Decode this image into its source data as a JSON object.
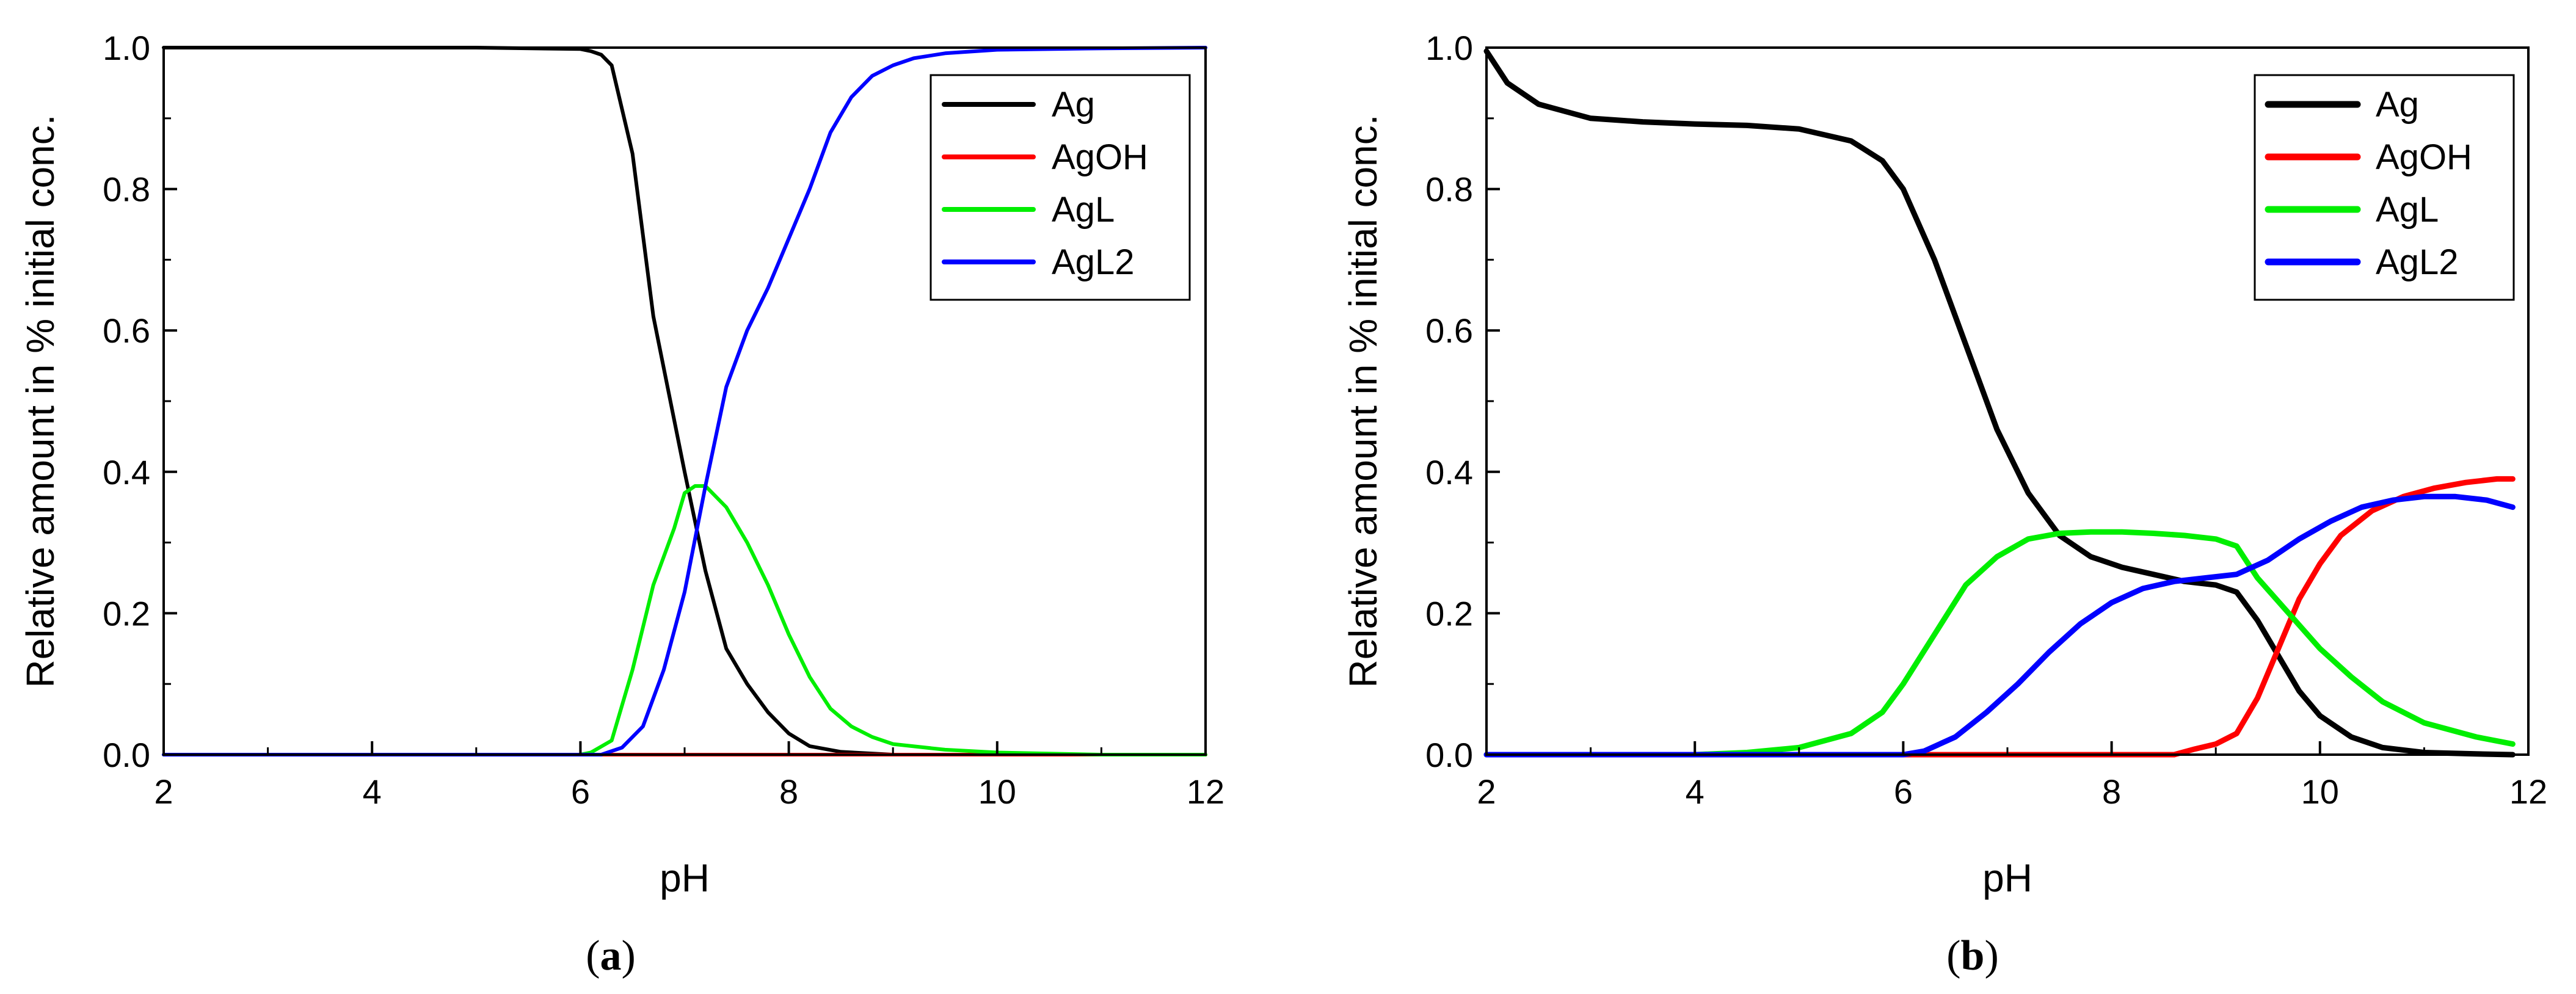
{
  "figure": {
    "panels": [
      "a",
      "b"
    ]
  },
  "chart_data": [
    {
      "type": "line",
      "panel_label": "a",
      "xlabel": "pH",
      "ylabel": "Relative amount in % initial conc.",
      "xlim": [
        2,
        12
      ],
      "ylim": [
        0,
        1.0
      ],
      "xticks": [
        2,
        4,
        6,
        8,
        10,
        12
      ],
      "xtick_labels": [
        "2",
        "4",
        "6",
        "8",
        "10",
        "12"
      ],
      "yticks": [
        0,
        0.2,
        0.4,
        0.6,
        0.8,
        1.0
      ],
      "ytick_labels": [
        "0.0",
        "0.2",
        "0.4",
        "0.6",
        "0.8",
        "1.0"
      ],
      "grid": false,
      "legend_position": "top-right",
      "series": [
        {
          "name": "Ag",
          "color": "#000000",
          "x": [
            2,
            4,
            5,
            6,
            6.1,
            6.2,
            6.3,
            6.5,
            6.7,
            7.0,
            7.2,
            7.4,
            7.6,
            7.8,
            8.0,
            8.2,
            8.5,
            9,
            12
          ],
          "y": [
            1.0,
            1.0,
            1.0,
            0.998,
            0.995,
            0.99,
            0.975,
            0.85,
            0.62,
            0.4,
            0.26,
            0.15,
            0.1,
            0.06,
            0.03,
            0.012,
            0.004,
            0.0,
            0.0
          ]
        },
        {
          "name": "AgOH",
          "color": "#ff0000",
          "x": [
            2,
            12
          ],
          "y": [
            0.0,
            0.0
          ]
        },
        {
          "name": "AgL",
          "color": "#00ee00",
          "x": [
            2,
            6,
            6.1,
            6.3,
            6.5,
            6.7,
            6.9,
            7.0,
            7.1,
            7.2,
            7.4,
            7.6,
            7.8,
            8.0,
            8.2,
            8.4,
            8.6,
            8.8,
            9.0,
            9.5,
            10,
            11,
            12
          ],
          "y": [
            0.0,
            0.0,
            0.003,
            0.02,
            0.12,
            0.24,
            0.32,
            0.37,
            0.38,
            0.38,
            0.35,
            0.3,
            0.24,
            0.17,
            0.11,
            0.065,
            0.04,
            0.025,
            0.015,
            0.007,
            0.003,
            0.0,
            0.0
          ]
        },
        {
          "name": "AgL2",
          "color": "#0000ff",
          "x": [
            2,
            6.2,
            6.4,
            6.6,
            6.8,
            7.0,
            7.2,
            7.4,
            7.6,
            7.8,
            8.0,
            8.2,
            8.4,
            8.6,
            8.8,
            9.0,
            9.2,
            9.5,
            10,
            11,
            12
          ],
          "y": [
            0.0,
            0.0,
            0.01,
            0.04,
            0.12,
            0.23,
            0.38,
            0.52,
            0.6,
            0.66,
            0.73,
            0.8,
            0.88,
            0.93,
            0.96,
            0.975,
            0.985,
            0.992,
            0.997,
            0.999,
            1.0
          ]
        }
      ]
    },
    {
      "type": "line",
      "panel_label": "b",
      "xlabel": "pH",
      "ylabel": "Relative amount in % initial conc.",
      "xlim": [
        2,
        12
      ],
      "ylim": [
        0,
        1.0
      ],
      "xticks": [
        2,
        4,
        6,
        8,
        10,
        12
      ],
      "xtick_labels": [
        "2",
        "4",
        "6",
        "8",
        "10",
        "12"
      ],
      "yticks": [
        0,
        0.2,
        0.4,
        0.6,
        0.8,
        1.0
      ],
      "ytick_labels": [
        "0.0",
        "0.2",
        "0.4",
        "0.6",
        "0.8",
        "1.0"
      ],
      "grid": false,
      "legend_position": "top-right",
      "series": [
        {
          "name": "Ag",
          "color": "#000000",
          "x": [
            2,
            2.2,
            2.5,
            3,
            3.5,
            4,
            4.5,
            5,
            5.5,
            5.8,
            6,
            6.3,
            6.6,
            6.9,
            7.2,
            7.5,
            7.8,
            8.1,
            8.4,
            8.7,
            9,
            9.2,
            9.4,
            9.6,
            9.8,
            10,
            10.3,
            10.6,
            11,
            11.5,
            11.85
          ],
          "y": [
            0.995,
            0.95,
            0.92,
            0.9,
            0.895,
            0.892,
            0.89,
            0.885,
            0.868,
            0.84,
            0.8,
            0.7,
            0.58,
            0.46,
            0.37,
            0.31,
            0.28,
            0.265,
            0.255,
            0.245,
            0.24,
            0.23,
            0.19,
            0.14,
            0.09,
            0.055,
            0.025,
            0.01,
            0.003,
            0.001,
            0.0
          ]
        },
        {
          "name": "AgOH",
          "color": "#ff0000",
          "x": [
            2,
            8.6,
            8.8,
            9.0,
            9.2,
            9.4,
            9.6,
            9.8,
            10,
            10.2,
            10.5,
            10.8,
            11.1,
            11.4,
            11.7,
            11.85
          ],
          "y": [
            0.0,
            0.0,
            0.008,
            0.015,
            0.03,
            0.08,
            0.15,
            0.22,
            0.27,
            0.31,
            0.345,
            0.365,
            0.377,
            0.385,
            0.39,
            0.39
          ]
        },
        {
          "name": "AgL",
          "color": "#00ee00",
          "x": [
            2,
            4,
            4.5,
            5,
            5.5,
            5.8,
            6,
            6.3,
            6.6,
            6.9,
            7.2,
            7.5,
            7.8,
            8.1,
            8.4,
            8.7,
            9,
            9.2,
            9.4,
            9.7,
            10,
            10.3,
            10.6,
            11,
            11.5,
            11.85
          ],
          "y": [
            0.0,
            0.0,
            0.003,
            0.01,
            0.03,
            0.06,
            0.1,
            0.17,
            0.24,
            0.28,
            0.305,
            0.313,
            0.315,
            0.315,
            0.313,
            0.31,
            0.305,
            0.295,
            0.25,
            0.2,
            0.15,
            0.11,
            0.075,
            0.045,
            0.025,
            0.015
          ]
        },
        {
          "name": "AgL2",
          "color": "#0000ff",
          "x": [
            2,
            6,
            6.2,
            6.5,
            6.8,
            7.1,
            7.4,
            7.7,
            8.0,
            8.3,
            8.6,
            8.9,
            9.2,
            9.5,
            9.8,
            10.1,
            10.4,
            10.7,
            11.0,
            11.3,
            11.6,
            11.85
          ],
          "y": [
            0.0,
            0.0,
            0.005,
            0.025,
            0.06,
            0.1,
            0.145,
            0.185,
            0.215,
            0.235,
            0.245,
            0.25,
            0.255,
            0.275,
            0.305,
            0.33,
            0.35,
            0.36,
            0.365,
            0.365,
            0.36,
            0.35
          ]
        }
      ]
    }
  ]
}
